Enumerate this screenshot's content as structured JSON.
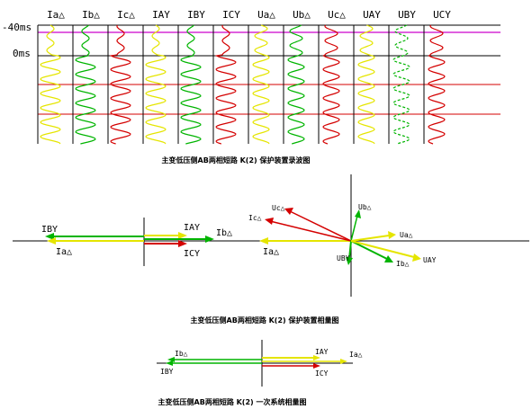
{
  "waveform": {
    "time_labels": [
      "-40ms",
      "0ms"
    ],
    "channels": [
      {
        "label": "Ia△",
        "color": "#e5e500"
      },
      {
        "label": "Ib△",
        "color": "#00b400"
      },
      {
        "label": "Ic△",
        "color": "#d40000"
      },
      {
        "label": "IAY",
        "color": "#e5e500"
      },
      {
        "label": "IBY",
        "color": "#00b400"
      },
      {
        "label": "ICY",
        "color": "#d40000"
      },
      {
        "label": "Ua△",
        "color": "#e5e500"
      },
      {
        "label": "Ub△",
        "color": "#00b400"
      },
      {
        "label": "Uc△",
        "color": "#d40000"
      },
      {
        "label": "UAY",
        "color": "#e5e500"
      },
      {
        "label": "UBY",
        "color": "#00b400"
      },
      {
        "label": "UCY",
        "color": "#d40000"
      }
    ],
    "caption": "主变低压侧AB两相短路 K(2) 保护装置录波图"
  },
  "phasor_protection": {
    "current_labels": [
      "IBY",
      "Ia△",
      "IAY",
      "Ib△",
      "ICY",
      "Ia△"
    ],
    "voltage_labels": [
      "Ic△",
      "Uc△",
      "Ub△",
      "Ua△",
      "UBY",
      "Ib△",
      "UAY"
    ],
    "caption": "主变低压侧AB两相短路 K(2) 保护装置相量图"
  },
  "phasor_primary": {
    "labels": [
      "Ib△",
      "IBY",
      "IAY",
      "Ia△",
      "ICY"
    ],
    "caption": "主变低压侧AB两相短路 K(2) 一次系统相量图"
  },
  "colors": {
    "yellow": "#e5e500",
    "green": "#00b400",
    "red": "#d40000",
    "magenta": "#cc00cc"
  }
}
